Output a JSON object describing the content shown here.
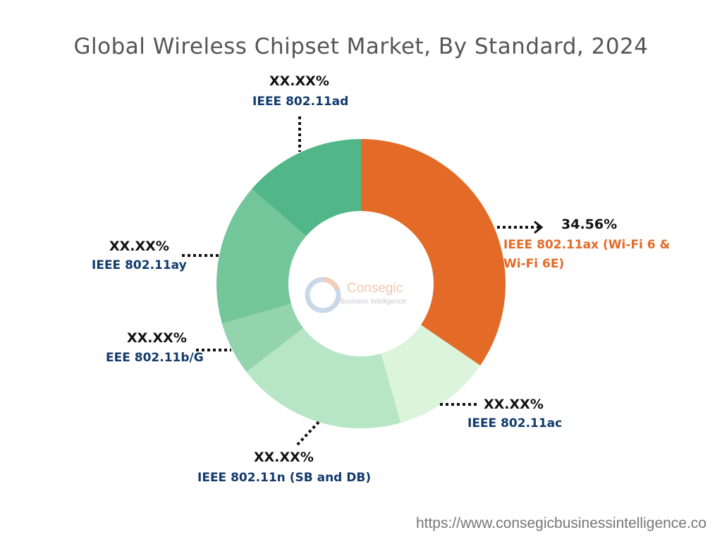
{
  "title": "Global Wireless Chipset Market, By Standard, 2024",
  "chart_data": {
    "type": "pie",
    "subtype": "donut",
    "title": "Global Wireless Chipset Market, By Standard, 2024",
    "start": "top",
    "direction": "clockwise",
    "slices": [
      {
        "name": "IEEE 802.11ax (Wi-Fi 6 & Wi-Fi 6E)",
        "label": "34.56%",
        "value": 34.56,
        "color": "#e36a27"
      },
      {
        "name": "IEEE 802.11ac",
        "label": "XX.XX%",
        "value": 11.0,
        "color": "#dcf3dc"
      },
      {
        "name": "IEEE 802.11n (SB and DB)",
        "label": "XX.XX%",
        "value": 19.0,
        "color": "#b7e6c6"
      },
      {
        "name": "EEE 802.11b/G",
        "label": "XX.XX%",
        "value": 6.0,
        "color": "#93d4ae"
      },
      {
        "name": "IEEE 802.11ay",
        "label": "XX.XX%",
        "value": 15.8,
        "color": "#72c69a"
      },
      {
        "name": "IEEE 802.11ad",
        "label": "XX.XX%",
        "value": 13.64,
        "color": "#52b788"
      }
    ]
  },
  "watermark": {
    "brand": "Consegic",
    "tagline": "Business Intelligence"
  },
  "source_url": "https://www.consegicbusinessintelligence.co"
}
